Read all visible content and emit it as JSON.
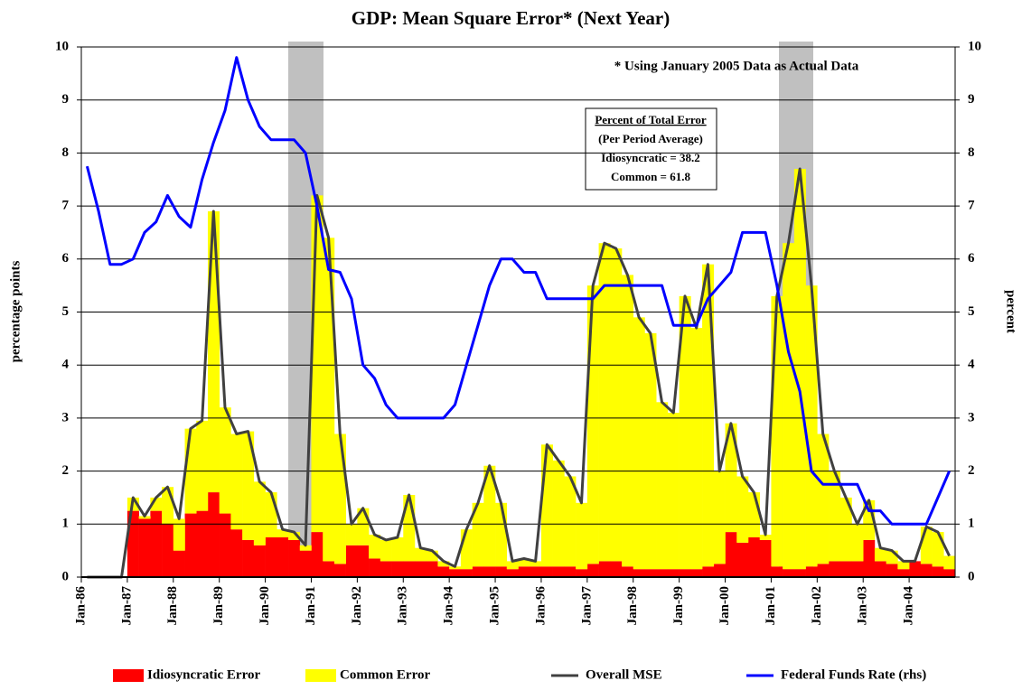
{
  "chart_data": {
    "type": "combo",
    "title": "GDP: Mean Square Error* (Next Year)",
    "y_label": "percentage points",
    "y2_label": "percent",
    "annotation": "* Using January 2005 Data as Actual Data",
    "box": {
      "heading": "Percent of Total Error",
      "subheading": "(Per Period Average)",
      "lines": [
        "Idiosyncratic = 38.2",
        "Common = 61.8"
      ]
    },
    "categories": [
      "Jan-86",
      null,
      null,
      null,
      "Jan-87",
      null,
      null,
      null,
      "Jan-88",
      null,
      null,
      null,
      "Jan-89",
      null,
      null,
      null,
      "Jan-90",
      null,
      null,
      null,
      "Jan-91",
      null,
      null,
      null,
      "Jan-92",
      null,
      null,
      null,
      "Jan-93",
      null,
      null,
      null,
      "Jan-94",
      null,
      null,
      null,
      "Jan-95",
      null,
      null,
      null,
      "Jan-96",
      null,
      null,
      null,
      "Jan-97",
      null,
      null,
      null,
      "Jan-98",
      null,
      null,
      null,
      "Jan-99",
      null,
      null,
      null,
      "Jan-00",
      null,
      null,
      null,
      "Jan-01",
      null,
      null,
      null,
      "Jan-02",
      null,
      null,
      null,
      "Jan-03",
      null,
      null,
      null,
      "Jan-04",
      null,
      null,
      null
    ],
    "stacked": true,
    "series": [
      {
        "name": "Idiosyncratic Error",
        "type": "bar",
        "color": "#ff0000",
        "values": [
          0,
          0,
          0,
          0,
          1.25,
          1.1,
          1.25,
          1.0,
          0.5,
          1.2,
          1.25,
          1.6,
          1.2,
          0.9,
          0.7,
          0.6,
          0.75,
          0.75,
          0.7,
          0.5,
          0.85,
          0.3,
          0.25,
          0.6,
          0.6,
          0.35,
          0.3,
          0.3,
          0.3,
          0.3,
          0.3,
          0.2,
          0.15,
          0.15,
          0.2,
          0.2,
          0.2,
          0.15,
          0.2,
          0.2,
          0.2,
          0.2,
          0.2,
          0.15,
          0.25,
          0.3,
          0.3,
          0.2,
          0.15,
          0.15,
          0.15,
          0.15,
          0.15,
          0.15,
          0.2,
          0.25,
          0.85,
          0.65,
          0.75,
          0.7,
          0.2,
          0.15,
          0.15,
          0.2,
          0.25,
          0.3,
          0.3,
          0.3,
          0.7,
          0.3,
          0.25,
          0.15,
          0.3,
          0.25,
          0.2,
          0.15
        ]
      },
      {
        "name": "Common Error",
        "type": "bar",
        "color": "#ffff00",
        "values": [
          0,
          0,
          0,
          0,
          0.25,
          0.05,
          0.25,
          0.7,
          0.6,
          1.6,
          1.7,
          5.3,
          2.0,
          1.8,
          2.05,
          1.2,
          0.85,
          0.15,
          0.15,
          0.1,
          6.35,
          6.1,
          2.45,
          0.4,
          0.7,
          0.45,
          0.4,
          0.45,
          1.25,
          0.25,
          0.2,
          0.1,
          0.05,
          0.75,
          1.2,
          1.9,
          1.2,
          0.15,
          0.15,
          0.1,
          2.3,
          2.0,
          1.7,
          1.25,
          5.25,
          6.0,
          5.9,
          5.5,
          4.75,
          4.45,
          3.15,
          2.95,
          5.15,
          4.55,
          5.7,
          1.75,
          2.05,
          1.25,
          0.85,
          0.1,
          5.1,
          6.15,
          7.55,
          5.3,
          2.45,
          1.7,
          1.2,
          0.7,
          0.75,
          0.25,
          0.25,
          0.15,
          0,
          0.7,
          0.65,
          0.25
        ]
      },
      {
        "name": "Overall MSE",
        "type": "line",
        "color": "#404040",
        "values": [
          0,
          0,
          0,
          0,
          1.5,
          1.15,
          1.5,
          1.7,
          1.1,
          2.8,
          2.95,
          6.9,
          3.2,
          2.7,
          2.75,
          1.8,
          1.6,
          0.9,
          0.85,
          0.6,
          7.2,
          6.4,
          2.7,
          1.0,
          1.3,
          0.8,
          0.7,
          0.75,
          1.55,
          0.55,
          0.5,
          0.3,
          0.2,
          0.9,
          1.4,
          2.1,
          1.4,
          0.3,
          0.35,
          0.3,
          2.5,
          2.2,
          1.9,
          1.4,
          5.5,
          6.3,
          6.2,
          5.7,
          4.9,
          4.6,
          3.3,
          3.1,
          5.3,
          4.7,
          5.9,
          2.0,
          2.9,
          1.9,
          1.6,
          0.8,
          5.3,
          6.3,
          7.7,
          5.5,
          2.7,
          2.0,
          1.5,
          1.0,
          1.45,
          0.55,
          0.5,
          0.3,
          0.3,
          0.95,
          0.85,
          0.4
        ]
      },
      {
        "name": "Federal Funds Rate (rhs)",
        "type": "line",
        "axis": "y2",
        "color": "#0000ff",
        "values": [
          7.75,
          6.9,
          5.9,
          5.9,
          6.0,
          6.5,
          6.7,
          7.2,
          6.8,
          6.6,
          7.5,
          8.2,
          8.8,
          9.8,
          9.0,
          8.5,
          8.25,
          8.25,
          8.25,
          8.0,
          7.0,
          5.8,
          5.75,
          5.25,
          4.0,
          3.75,
          3.25,
          3.0,
          3,
          3,
          3,
          3,
          3.25,
          4.0,
          4.75,
          5.5,
          6.0,
          6.0,
          5.75,
          5.75,
          5.25,
          5.25,
          5.25,
          5.25,
          5.25,
          5.5,
          5.5,
          5.5,
          5.5,
          5.5,
          5.5,
          4.75,
          4.75,
          4.75,
          5.25,
          5.5,
          5.75,
          6.5,
          6.5,
          6.5,
          5.5,
          4.25,
          3.5,
          2.0,
          1.75,
          1.75,
          1.75,
          1.75,
          1.25,
          1.25,
          1.0,
          1.0,
          1.0,
          1.0,
          1.5,
          2.0
        ]
      }
    ],
    "ylim": [
      0,
      10
    ],
    "yticks": [
      0,
      1,
      2,
      3,
      4,
      5,
      6,
      7,
      8,
      9,
      10
    ],
    "y2lim": [
      0,
      10
    ],
    "y2ticks": [
      0,
      1,
      2,
      3,
      4,
      5,
      6,
      7,
      8,
      9,
      10
    ],
    "grid": true,
    "legend": "bottom"
  }
}
